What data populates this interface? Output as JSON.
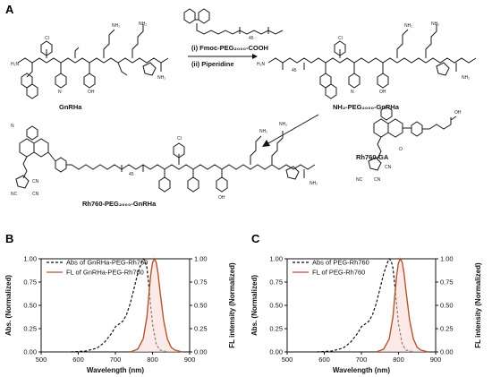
{
  "panels": {
    "A": "A",
    "B": "B",
    "C": "C"
  },
  "scheme": {
    "compounds": {
      "gnrha": "GnRHa",
      "nh2_peg_gnrha": "NH₂-PEG₂₀₀₀-GnRHa",
      "rh760_ga": "Rh760-GA",
      "rh760_peg_gnrha": "Rh760-PEG₂₀₀₀-GnRHa"
    },
    "steps": {
      "step1": "(i) Fmoc-PEG₂₀₀₀-COOH",
      "step2": "(ii) Piperidine"
    },
    "atoms": {
      "h2n": "H₂N",
      "nh2": "NH₂",
      "o": "O",
      "n": "N",
      "nc": "NC",
      "cn": "CN",
      "oh": "OH",
      "cl": "Cl",
      "peg_n": "45"
    }
  },
  "chart_data": [
    {
      "type": "line",
      "panel": "B",
      "xlabel": "Wavelength (nm)",
      "ylabel_left": "Abs. (Normalized)",
      "ylabel_right": "FL intensity (Normalized)",
      "xlim": [
        500,
        900
      ],
      "ylim": [
        0,
        1.0
      ],
      "xticks": [
        "500",
        "600",
        "700",
        "800",
        "900"
      ],
      "yticks": [
        "0.00",
        "0.25",
        "0.50",
        "0.75",
        "1.00"
      ],
      "legend": "top-left",
      "series": [
        {
          "name": "Abs of GnRHa-PEG-Rh760",
          "style": "dashed",
          "color": "#111111",
          "x": [
            580,
            620,
            650,
            670,
            690,
            700,
            710,
            720,
            730,
            740,
            750,
            760,
            770,
            775,
            780,
            785,
            790,
            795,
            800,
            810,
            820,
            840
          ],
          "y": [
            0.0,
            0.01,
            0.04,
            0.1,
            0.2,
            0.27,
            0.3,
            0.33,
            0.4,
            0.52,
            0.68,
            0.84,
            0.96,
            1.0,
            0.98,
            0.9,
            0.72,
            0.5,
            0.3,
            0.08,
            0.02,
            0.0
          ]
        },
        {
          "name": "FL of GnRHa-PEG-Rh760",
          "style": "solid",
          "color": "#b5542c",
          "x": [
            740,
            760,
            775,
            785,
            790,
            795,
            800,
            805,
            810,
            815,
            820,
            830,
            840,
            850,
            860,
            880
          ],
          "y": [
            0.0,
            0.03,
            0.14,
            0.38,
            0.6,
            0.82,
            0.96,
            1.0,
            0.96,
            0.84,
            0.66,
            0.34,
            0.14,
            0.05,
            0.02,
            0.0
          ]
        }
      ]
    },
    {
      "type": "line",
      "panel": "C",
      "xlabel": "Wavelength (nm)",
      "ylabel_left": "Abs. (Normalized)",
      "ylabel_right": "FL intensity (Normalized)",
      "xlim": [
        500,
        900
      ],
      "ylim": [
        0,
        1.0
      ],
      "xticks": [
        "500",
        "600",
        "700",
        "800",
        "900"
      ],
      "yticks": [
        "0.00",
        "0.25",
        "0.50",
        "0.75",
        "1.00"
      ],
      "legend": "top-left",
      "series": [
        {
          "name": "Abs of PEG-Rh760",
          "style": "dashed",
          "color": "#111111",
          "x": [
            580,
            620,
            650,
            670,
            690,
            700,
            710,
            720,
            730,
            740,
            750,
            760,
            770,
            775,
            780,
            785,
            790,
            795,
            800,
            810,
            820,
            840
          ],
          "y": [
            0.0,
            0.01,
            0.04,
            0.1,
            0.2,
            0.27,
            0.3,
            0.33,
            0.4,
            0.52,
            0.68,
            0.84,
            0.96,
            1.0,
            0.98,
            0.9,
            0.72,
            0.5,
            0.3,
            0.08,
            0.02,
            0.0
          ]
        },
        {
          "name": "FL of PEG-Rh760",
          "style": "solid",
          "color": "#b5542c",
          "x": [
            740,
            760,
            775,
            785,
            790,
            795,
            800,
            805,
            810,
            815,
            820,
            830,
            840,
            850,
            860,
            880
          ],
          "y": [
            0.0,
            0.03,
            0.14,
            0.38,
            0.6,
            0.82,
            0.96,
            1.0,
            0.96,
            0.84,
            0.66,
            0.34,
            0.14,
            0.05,
            0.02,
            0.0
          ]
        }
      ]
    }
  ]
}
